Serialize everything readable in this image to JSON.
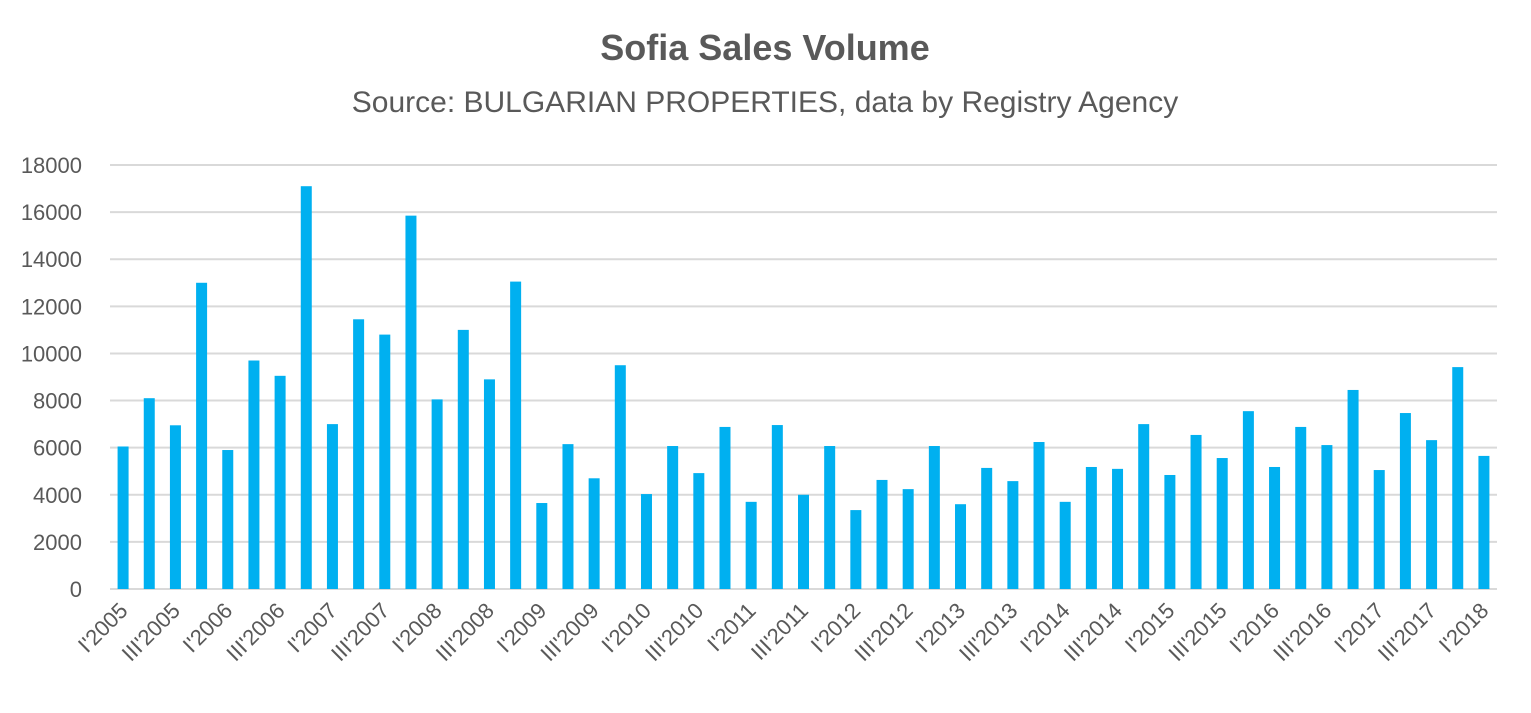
{
  "chart_data": {
    "type": "bar",
    "title": "Sofia Sales Volume",
    "subtitle": "Source: BULGARIAN PROPERTIES, data by Registry Agency",
    "xlabel": "",
    "ylabel": "",
    "ylim": [
      0,
      18000
    ],
    "yticks": [
      0,
      2000,
      4000,
      6000,
      8000,
      10000,
      12000,
      14000,
      16000,
      18000
    ],
    "grid": true,
    "bar_color": "#00B0F0",
    "categories": [
      "I'2005",
      "II'2005",
      "III'2005",
      "IV'2005",
      "I'2006",
      "II'2006",
      "III'2006",
      "IV'2006",
      "I'2007",
      "II'2007",
      "III'2007",
      "IV'2007",
      "I'2008",
      "II'2008",
      "III'2008",
      "IV'2008",
      "I'2009",
      "II'2009",
      "III'2009",
      "IV'2009",
      "I'2010",
      "II'2010",
      "III'2010",
      "IV'2010",
      "I'2011",
      "II'2011",
      "III'2011",
      "IV'2011",
      "I'2012",
      "II'2012",
      "III'2012",
      "IV'2012",
      "I'2013",
      "II'2013",
      "III'2013",
      "IV'2013",
      "I'2014",
      "II'2014",
      "III'2014",
      "IV'2014",
      "I'2015",
      "II'2015",
      "III'2015",
      "IV'2015",
      "I'2016",
      "II'2016",
      "III'2016",
      "IV'2016",
      "I'2017",
      "II'2017",
      "III'2017",
      "IV'2017",
      "I'2018"
    ],
    "tick_labels": [
      "I'2005",
      "III'2005",
      "I'2006",
      "III'2006",
      "I'2007",
      "III'2007",
      "I'2008",
      "III'2008",
      "I'2009",
      "III'2009",
      "I'2010",
      "III'2010",
      "I'2011",
      "III'2011",
      "I'2012",
      "III'2012",
      "I'2013",
      "III'2013",
      "I'2014",
      "III'2014",
      "I'2015",
      "III'2015",
      "I'2016",
      "III'2016",
      "I'2017",
      "III'2017",
      "I'2018"
    ],
    "values": [
      6050,
      8100,
      6950,
      13000,
      5900,
      9700,
      9050,
      17100,
      7000,
      11450,
      10800,
      15850,
      8050,
      11000,
      8900,
      13050,
      3650,
      6150,
      4700,
      9500,
      4030,
      6070,
      4920,
      6880,
      3700,
      6960,
      4000,
      6070,
      3350,
      4630,
      4240,
      6070,
      3600,
      5140,
      4580,
      6240,
      3700,
      5180,
      5100,
      7000,
      4840,
      6540,
      5560,
      7550,
      5180,
      6880,
      6110,
      8450,
      5050,
      7470,
      6320,
      9420,
      5650
    ]
  }
}
